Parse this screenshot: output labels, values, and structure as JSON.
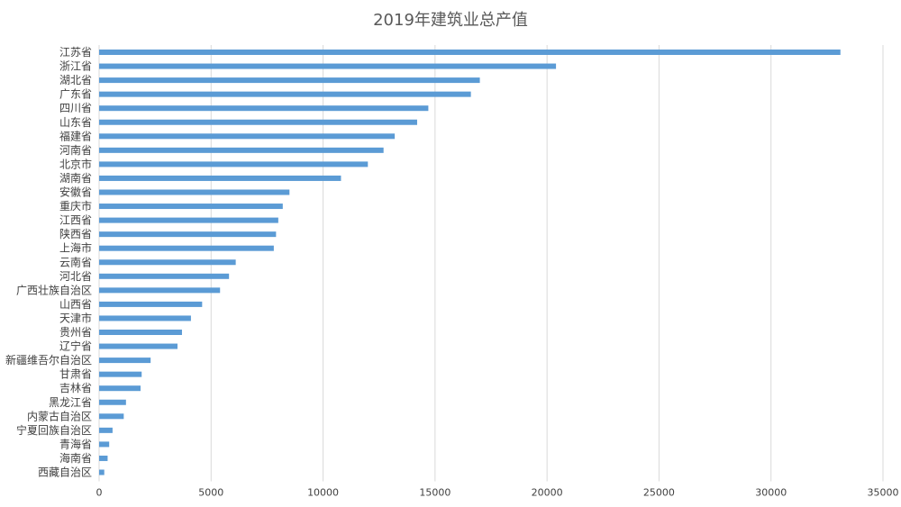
{
  "chart_data": {
    "type": "bar",
    "orientation": "horizontal",
    "title": "2019年建筑业总产值",
    "xlabel": "",
    "ylabel": "",
    "xlim": [
      0,
      35000
    ],
    "xticks": [
      0,
      5000,
      10000,
      15000,
      20000,
      25000,
      30000,
      35000
    ],
    "grid": true,
    "bar_color": "#5B9BD5",
    "grid_color": "#D9D9D9",
    "categories": [
      "江苏省",
      "浙江省",
      "湖北省",
      "广东省",
      "四川省",
      "山东省",
      "福建省",
      "河南省",
      "北京市",
      "湖南省",
      "安徽省",
      "重庆市",
      "江西省",
      "陕西省",
      "上海市",
      "云南省",
      "河北省",
      "广西壮族自治区",
      "山西省",
      "天津市",
      "贵州省",
      "辽宁省",
      "新疆维吾尔自治区",
      "甘肃省",
      "吉林省",
      "黑龙江省",
      "内蒙古自治区",
      "宁夏回族自治区",
      "青海省",
      "海南省",
      "西藏自治区"
    ],
    "values": [
      33100,
      20400,
      17000,
      16600,
      14700,
      14200,
      13200,
      12700,
      12000,
      10800,
      8500,
      8200,
      8000,
      7900,
      7800,
      6100,
      5800,
      5400,
      4600,
      4100,
      3700,
      3500,
      2300,
      1900,
      1850,
      1200,
      1100,
      600,
      450,
      380,
      230
    ]
  }
}
